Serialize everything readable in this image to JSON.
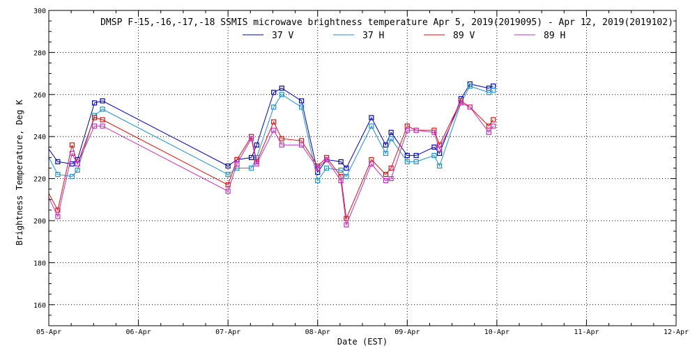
{
  "chart_data": {
    "type": "line",
    "title": "DMSP F-15,-16,-17,-18 SSMIS microwave brightness temperature Apr  5, 2019(2019095) - Apr 12, 2019(2019102)",
    "xlabel": "Date (EST)",
    "ylabel": "Brightness Temperature, Deg K",
    "xlim": [
      0,
      7
    ],
    "ylim": [
      150,
      300
    ],
    "grid": true,
    "x_ticks": [
      {
        "value": 0,
        "label": "05-Apr"
      },
      {
        "value": 1,
        "label": "06-Apr"
      },
      {
        "value": 2,
        "label": "07-Apr"
      },
      {
        "value": 3,
        "label": "08-Apr"
      },
      {
        "value": 4,
        "label": "09-Apr"
      },
      {
        "value": 5,
        "label": "10-Apr"
      },
      {
        "value": 6,
        "label": "11-Apr"
      },
      {
        "value": 7,
        "label": "12-Apr"
      }
    ],
    "y_ticks": [
      {
        "value": 160,
        "label": "160"
      },
      {
        "value": 180,
        "label": "180"
      },
      {
        "value": 200,
        "label": "200"
      },
      {
        "value": 220,
        "label": "220"
      },
      {
        "value": 240,
        "label": "240"
      },
      {
        "value": 260,
        "label": "260"
      },
      {
        "value": 280,
        "label": "280"
      },
      {
        "value": 300,
        "label": "300"
      }
    ],
    "x": [
      0.0,
      0.1,
      0.26,
      0.32,
      0.51,
      0.6,
      2.0,
      2.1,
      2.26,
      2.32,
      2.51,
      2.6,
      2.82,
      3.0,
      3.1,
      3.26,
      3.32,
      3.6,
      3.76,
      3.82,
      4.0,
      4.1,
      4.3,
      4.36,
      4.6,
      4.7,
      4.91,
      4.96,
      5.0
    ],
    "series": [
      {
        "name": "37 V",
        "color": "#0000bb",
        "values": [
          234,
          228,
          227,
          229,
          256,
          257,
          226,
          229,
          230,
          236,
          261,
          263,
          257,
          223,
          229,
          228,
          225,
          249,
          236,
          242,
          231,
          231,
          235,
          232,
          258,
          265,
          263,
          264,
          null
        ]
      },
      {
        "name": "37 H",
        "color": "#1e90d0",
        "values": [
          230,
          222,
          221,
          224,
          250,
          253,
          222,
          225,
          225,
          230,
          254,
          260,
          254,
          219,
          225,
          224,
          221,
          245,
          232,
          239,
          228,
          228,
          231,
          226,
          256,
          264,
          261,
          262,
          null
        ]
      },
      {
        "name": "89 V",
        "color": "#dd1010",
        "values": [
          213,
          205,
          236,
          227,
          249,
          248,
          217,
          229,
          240,
          228,
          247,
          239,
          238,
          226,
          230,
          221,
          201,
          229,
          222,
          225,
          245,
          243,
          243,
          236,
          257,
          254,
          245,
          248,
          null
        ]
      },
      {
        "name": "89 H",
        "color": "#c030c0",
        "values": [
          211,
          202,
          232,
          227,
          245,
          245,
          214,
          227,
          239,
          227,
          243,
          236,
          236,
          225,
          229,
          219,
          198,
          227,
          219,
          220,
          243,
          243,
          242,
          234,
          256,
          254,
          242,
          245,
          null
        ]
      }
    ]
  }
}
